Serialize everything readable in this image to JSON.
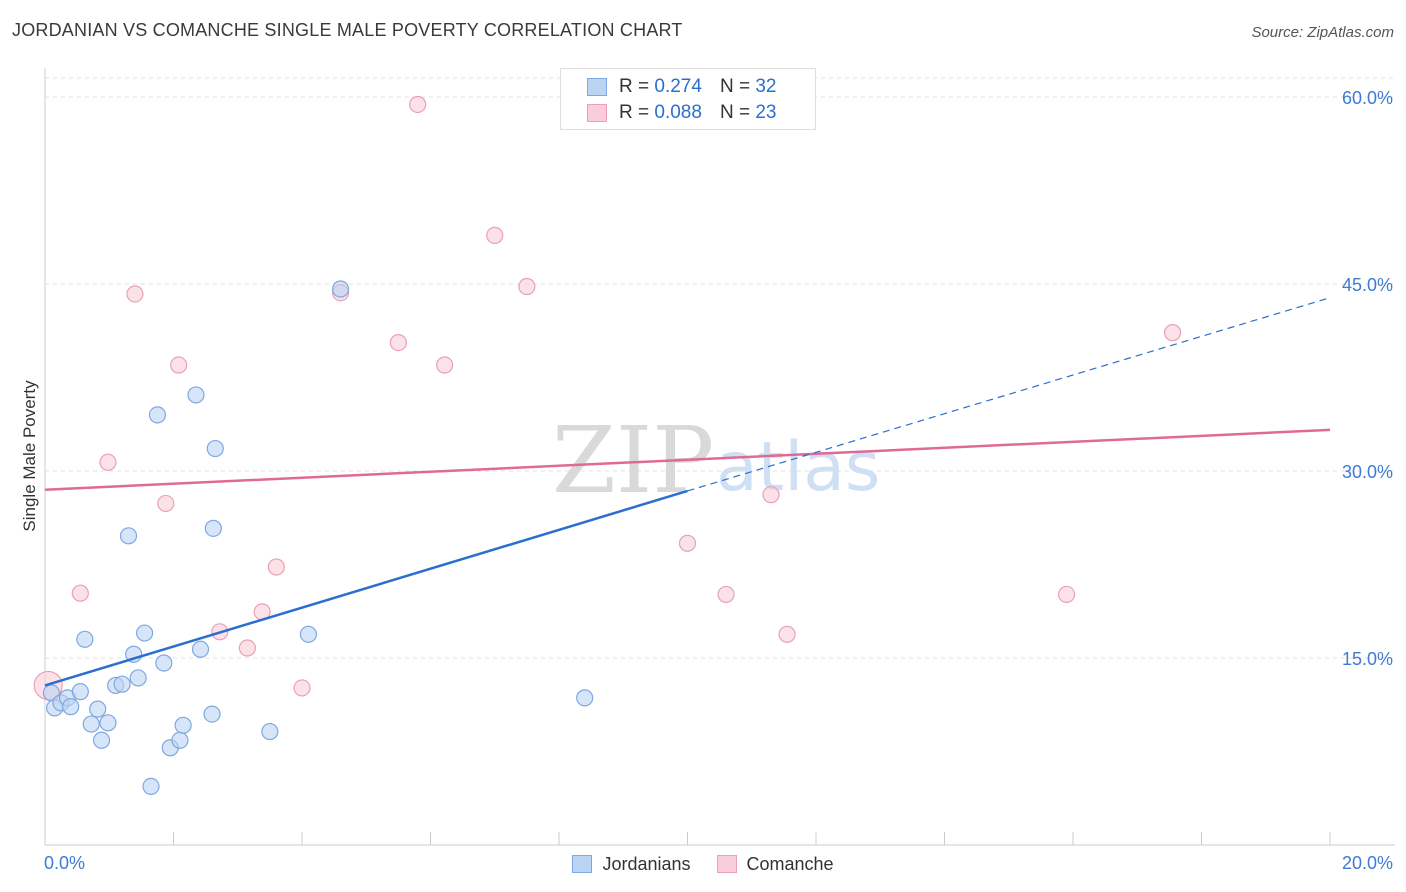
{
  "title": "JORDANIAN VS COMANCHE SINGLE MALE POVERTY CORRELATION CHART",
  "source": "Source: ZipAtlas.com",
  "legend_top": {
    "rows": [
      {
        "r_label": "R =",
        "r_value": "0.274",
        "n_label": "N =",
        "n_value": "32"
      },
      {
        "r_label": "R =",
        "r_value": "0.088",
        "n_label": "N =",
        "n_value": "23"
      }
    ]
  },
  "legend_bottom": {
    "items": [
      {
        "label": "Jordanians"
      },
      {
        "label": "Comanche"
      }
    ]
  },
  "watermark": {
    "zip": "ZIP",
    "atlas": "atlas"
  },
  "colors": {
    "blue_fill": "#bcd4f4",
    "blue_stroke": "#7fa8e0",
    "blue_line": "#2a6fcf",
    "pink_fill": "#f9cdd9",
    "pink_stroke": "#eba0b5",
    "pink_line": "#e06a92",
    "tick_text": "#3e7bd4",
    "grid": "#e2e2e2"
  },
  "chart_data": {
    "type": "scatter",
    "title": "JORDANIAN VS COMANCHE SINGLE MALE POVERTY CORRELATION CHART",
    "xlabel": "",
    "ylabel": "Single Male Poverty",
    "xlim": [
      0,
      20
    ],
    "ylim": [
      0,
      60
    ],
    "x_tick_labels": [
      "0.0%",
      "20.0%"
    ],
    "y_ticks": [
      15,
      30,
      45,
      60
    ],
    "y_tick_labels": [
      "15.0%",
      "30.0%",
      "45.0%",
      "60.0%"
    ],
    "grid": true,
    "series": [
      {
        "name": "Jordanians",
        "color": "#2a6fcf",
        "r": 0.274,
        "n": 32,
        "points": [
          [
            0.1,
            12.2
          ],
          [
            0.15,
            11.0
          ],
          [
            0.25,
            11.4
          ],
          [
            0.35,
            11.8
          ],
          [
            0.4,
            11.1
          ],
          [
            0.55,
            12.3
          ],
          [
            0.62,
            16.5
          ],
          [
            0.72,
            9.7
          ],
          [
            0.82,
            10.9
          ],
          [
            0.88,
            8.4
          ],
          [
            0.98,
            9.8
          ],
          [
            1.1,
            12.8
          ],
          [
            1.2,
            12.9
          ],
          [
            1.3,
            24.8
          ],
          [
            1.38,
            15.3
          ],
          [
            1.45,
            13.4
          ],
          [
            1.55,
            17.0
          ],
          [
            1.65,
            4.7
          ],
          [
            1.75,
            34.5
          ],
          [
            1.85,
            14.6
          ],
          [
            1.95,
            7.8
          ],
          [
            2.1,
            8.4
          ],
          [
            2.15,
            9.6
          ],
          [
            2.35,
            36.1
          ],
          [
            2.42,
            15.7
          ],
          [
            2.6,
            10.5
          ],
          [
            2.62,
            25.4
          ],
          [
            2.65,
            31.8
          ],
          [
            3.5,
            9.1
          ],
          [
            4.1,
            16.9
          ],
          [
            4.6,
            44.6
          ],
          [
            8.4,
            11.8
          ]
        ],
        "trend": {
          "x0": 0.0,
          "y0": 12.8,
          "x1": 10.0,
          "y1": 28.4,
          "dashed_to_x": 20.0,
          "dashed_to_y": 43.9
        }
      },
      {
        "name": "Comanche",
        "color": "#e06a92",
        "r": 0.088,
        "n": 23,
        "points": [
          [
            0.05,
            12.8
          ],
          [
            0.55,
            20.2
          ],
          [
            0.98,
            30.7
          ],
          [
            1.4,
            44.2
          ],
          [
            1.88,
            27.4
          ],
          [
            2.08,
            38.5
          ],
          [
            2.72,
            17.1
          ],
          [
            3.15,
            15.8
          ],
          [
            3.38,
            18.7
          ],
          [
            3.6,
            22.3
          ],
          [
            4.0,
            12.6
          ],
          [
            4.6,
            44.3
          ],
          [
            5.5,
            40.3
          ],
          [
            5.8,
            59.4
          ],
          [
            6.22,
            38.5
          ],
          [
            7.0,
            48.9
          ],
          [
            7.5,
            44.8
          ],
          [
            10.0,
            24.2
          ],
          [
            10.6,
            20.1
          ],
          [
            11.3,
            28.1
          ],
          [
            11.55,
            16.9
          ],
          [
            15.9,
            20.1
          ],
          [
            17.55,
            41.1
          ]
        ],
        "trend": {
          "x0": 0.0,
          "y0": 28.5,
          "x1": 20.0,
          "y1": 33.3
        }
      }
    ]
  }
}
